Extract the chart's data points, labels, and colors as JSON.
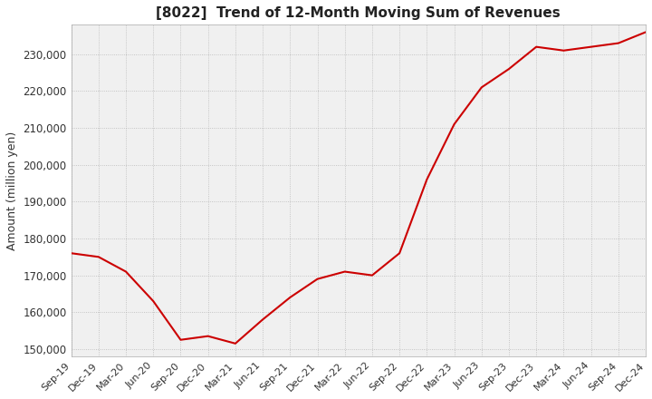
{
  "title": "[8022]  Trend of 12-Month Moving Sum of Revenues",
  "ylabel": "Amount (million yen)",
  "line_color": "#cc0000",
  "background_color": "#ffffff",
  "plot_bg_color": "#f0f0f0",
  "grid_color": "#aaaaaa",
  "ylim": [
    148000,
    238000
  ],
  "yticks": [
    150000,
    160000,
    170000,
    180000,
    190000,
    200000,
    210000,
    220000,
    230000
  ],
  "x_labels": [
    "Sep-19",
    "Dec-19",
    "Mar-20",
    "Jun-20",
    "Sep-20",
    "Dec-20",
    "Mar-21",
    "Jun-21",
    "Sep-21",
    "Dec-21",
    "Mar-22",
    "Jun-22",
    "Sep-22",
    "Dec-22",
    "Mar-23",
    "Jun-23",
    "Sep-23",
    "Dec-23",
    "Mar-24",
    "Jun-24",
    "Sep-24",
    "Dec-24"
  ],
  "values": [
    176000,
    175000,
    171000,
    163000,
    152500,
    153500,
    151500,
    158000,
    164000,
    169000,
    171000,
    170000,
    176000,
    196000,
    211000,
    221000,
    226000,
    232000,
    231000,
    232000,
    233000,
    236000
  ]
}
